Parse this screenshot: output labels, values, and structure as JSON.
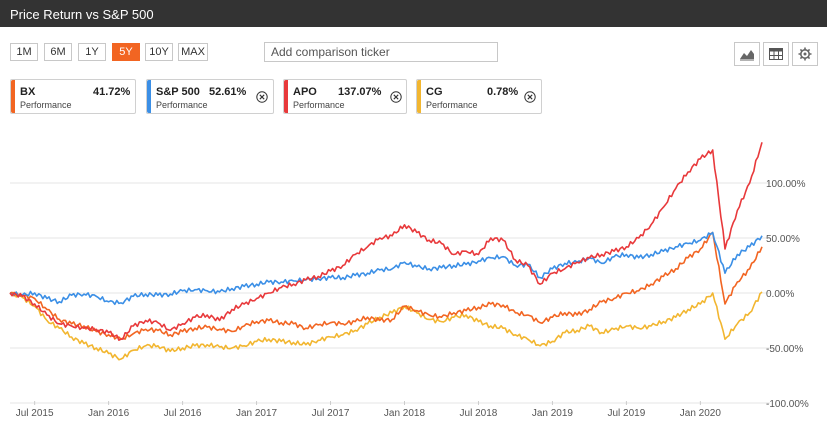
{
  "header": {
    "title": "Price Return vs S&P 500"
  },
  "ranges": [
    {
      "label": "1M",
      "active": false
    },
    {
      "label": "6M",
      "active": false
    },
    {
      "label": "1Y",
      "active": false
    },
    {
      "label": "5Y",
      "active": true
    },
    {
      "label": "10Y",
      "active": false
    },
    {
      "label": "MAX",
      "active": false
    }
  ],
  "comparison": {
    "placeholder": "Add comparison ticker"
  },
  "toolbar": {
    "icons": [
      "area-chart-icon",
      "table-icon",
      "gear-icon"
    ]
  },
  "cards": [
    {
      "symbol": "BX",
      "value": "41.72%",
      "sub": "Performance",
      "color": "#f26522",
      "removable": false
    },
    {
      "symbol": "S&P 500",
      "value": "52.61%",
      "sub": "Performance",
      "color": "#3b8fe6",
      "removable": true
    },
    {
      "symbol": "APO",
      "value": "137.07%",
      "sub": "Performance",
      "color": "#e8393b",
      "removable": true
    },
    {
      "symbol": "CG",
      "value": "0.78%",
      "sub": "Performance",
      "color": "#f2b630",
      "removable": true
    }
  ],
  "chart_data": {
    "type": "line",
    "x_ticks": [
      "Jul 2015",
      "Jan 2016",
      "Jul 2016",
      "Jan 2017",
      "Jul 2017",
      "Jan 2018",
      "Jul 2018",
      "Jan 2019",
      "Jul 2019",
      "Jan 2020"
    ],
    "y_ticks": [
      "100.00%",
      "50.00%",
      "0.00%",
      "-50.00%",
      "-100.00%"
    ],
    "ylim": [
      -100,
      150
    ],
    "xlim": [
      "2015-05",
      "2020-06"
    ],
    "grid": "horizontal",
    "series": [
      {
        "name": "BX",
        "color": "#f26522",
        "points": [
          [
            "2015-05",
            0
          ],
          [
            "2015-06",
            -2
          ],
          [
            "2015-07",
            -5
          ],
          [
            "2015-08",
            -15
          ],
          [
            "2015-09",
            -24
          ],
          [
            "2015-10",
            -28
          ],
          [
            "2015-11",
            -30
          ],
          [
            "2015-12",
            -35
          ],
          [
            "2016-01",
            -38
          ],
          [
            "2016-02",
            -42
          ],
          [
            "2016-03",
            -37
          ],
          [
            "2016-04",
            -33
          ],
          [
            "2016-05",
            -34
          ],
          [
            "2016-06",
            -38
          ],
          [
            "2016-07",
            -35
          ],
          [
            "2016-08",
            -32
          ],
          [
            "2016-09",
            -31
          ],
          [
            "2016-10",
            -33
          ],
          [
            "2016-11",
            -35
          ],
          [
            "2016-12",
            -30
          ],
          [
            "2017-01",
            -26
          ],
          [
            "2017-02",
            -25
          ],
          [
            "2017-03",
            -27
          ],
          [
            "2017-04",
            -28
          ],
          [
            "2017-05",
            -32
          ],
          [
            "2017-06",
            -29
          ],
          [
            "2017-07",
            -27
          ],
          [
            "2017-08",
            -28
          ],
          [
            "2017-09",
            -26
          ],
          [
            "2017-10",
            -22
          ],
          [
            "2017-11",
            -25
          ],
          [
            "2017-12",
            -24
          ],
          [
            "2018-01",
            -12
          ],
          [
            "2018-02",
            -16
          ],
          [
            "2018-03",
            -20
          ],
          [
            "2018-04",
            -22
          ],
          [
            "2018-05",
            -18
          ],
          [
            "2018-06",
            -16
          ],
          [
            "2018-07",
            -13
          ],
          [
            "2018-08",
            -10
          ],
          [
            "2018-09",
            -11
          ],
          [
            "2018-10",
            -18
          ],
          [
            "2018-11",
            -20
          ],
          [
            "2018-12",
            -27
          ],
          [
            "2019-01",
            -22
          ],
          [
            "2019-02",
            -18
          ],
          [
            "2019-03",
            -20
          ],
          [
            "2019-04",
            -15
          ],
          [
            "2019-05",
            -8
          ],
          [
            "2019-06",
            -5
          ],
          [
            "2019-07",
            0
          ],
          [
            "2019-08",
            2
          ],
          [
            "2019-09",
            8
          ],
          [
            "2019-10",
            15
          ],
          [
            "2019-11",
            22
          ],
          [
            "2019-12",
            32
          ],
          [
            "2020-01",
            40
          ],
          [
            "2020-02",
            55
          ],
          [
            "2020-03",
            -10
          ],
          [
            "2020-04",
            10
          ],
          [
            "2020-05",
            22
          ],
          [
            "2020-06",
            42
          ]
        ]
      },
      {
        "name": "S&P 500",
        "color": "#3b8fe6",
        "points": [
          [
            "2015-05",
            0
          ],
          [
            "2015-06",
            -2
          ],
          [
            "2015-07",
            0
          ],
          [
            "2015-08",
            -5
          ],
          [
            "2015-09",
            -8
          ],
          [
            "2015-10",
            -2
          ],
          [
            "2015-11",
            -1
          ],
          [
            "2015-12",
            -3
          ],
          [
            "2016-01",
            -8
          ],
          [
            "2016-02",
            -9
          ],
          [
            "2016-03",
            -3
          ],
          [
            "2016-04",
            -1
          ],
          [
            "2016-05",
            -2
          ],
          [
            "2016-06",
            -1
          ],
          [
            "2016-07",
            2
          ],
          [
            "2016-08",
            3
          ],
          [
            "2016-09",
            2
          ],
          [
            "2016-10",
            1
          ],
          [
            "2016-11",
            4
          ],
          [
            "2016-12",
            6
          ],
          [
            "2017-01",
            8
          ],
          [
            "2017-02",
            10
          ],
          [
            "2017-03",
            10
          ],
          [
            "2017-04",
            11
          ],
          [
            "2017-05",
            12
          ],
          [
            "2017-06",
            13
          ],
          [
            "2017-07",
            14
          ],
          [
            "2017-08",
            14
          ],
          [
            "2017-09",
            16
          ],
          [
            "2017-10",
            18
          ],
          [
            "2017-11",
            21
          ],
          [
            "2017-12",
            22
          ],
          [
            "2018-01",
            28
          ],
          [
            "2018-02",
            24
          ],
          [
            "2018-03",
            22
          ],
          [
            "2018-04",
            23
          ],
          [
            "2018-05",
            25
          ],
          [
            "2018-06",
            26
          ],
          [
            "2018-07",
            29
          ],
          [
            "2018-08",
            32
          ],
          [
            "2018-09",
            33
          ],
          [
            "2018-10",
            25
          ],
          [
            "2018-11",
            26
          ],
          [
            "2018-12",
            14
          ],
          [
            "2019-01",
            22
          ],
          [
            "2019-02",
            27
          ],
          [
            "2019-03",
            28
          ],
          [
            "2019-04",
            32
          ],
          [
            "2019-05",
            27
          ],
          [
            "2019-06",
            33
          ],
          [
            "2019-07",
            35
          ],
          [
            "2019-08",
            32
          ],
          [
            "2019-09",
            35
          ],
          [
            "2019-10",
            38
          ],
          [
            "2019-11",
            42
          ],
          [
            "2019-12",
            45
          ],
          [
            "2020-01",
            48
          ],
          [
            "2020-02",
            55
          ],
          [
            "2020-03",
            18
          ],
          [
            "2020-04",
            35
          ],
          [
            "2020-05",
            42
          ],
          [
            "2020-06",
            52
          ]
        ]
      },
      {
        "name": "APO",
        "color": "#e8393b",
        "points": [
          [
            "2015-05",
            0
          ],
          [
            "2015-06",
            -3
          ],
          [
            "2015-07",
            -10
          ],
          [
            "2015-08",
            -20
          ],
          [
            "2015-09",
            -28
          ],
          [
            "2015-10",
            -30
          ],
          [
            "2015-11",
            -32
          ],
          [
            "2015-12",
            -33
          ],
          [
            "2016-01",
            -36
          ],
          [
            "2016-02",
            -42
          ],
          [
            "2016-03",
            -30
          ],
          [
            "2016-04",
            -25
          ],
          [
            "2016-05",
            -27
          ],
          [
            "2016-06",
            -34
          ],
          [
            "2016-07",
            -28
          ],
          [
            "2016-08",
            -22
          ],
          [
            "2016-09",
            -20
          ],
          [
            "2016-10",
            -25
          ],
          [
            "2016-11",
            -15
          ],
          [
            "2016-12",
            -10
          ],
          [
            "2017-01",
            -5
          ],
          [
            "2017-02",
            0
          ],
          [
            "2017-03",
            5
          ],
          [
            "2017-04",
            8
          ],
          [
            "2017-05",
            12
          ],
          [
            "2017-06",
            15
          ],
          [
            "2017-07",
            20
          ],
          [
            "2017-08",
            25
          ],
          [
            "2017-09",
            35
          ],
          [
            "2017-10",
            42
          ],
          [
            "2017-11",
            50
          ],
          [
            "2017-12",
            52
          ],
          [
            "2018-01",
            62
          ],
          [
            "2018-02",
            55
          ],
          [
            "2018-03",
            48
          ],
          [
            "2018-04",
            45
          ],
          [
            "2018-05",
            35
          ],
          [
            "2018-06",
            38
          ],
          [
            "2018-07",
            35
          ],
          [
            "2018-08",
            50
          ],
          [
            "2018-09",
            48
          ],
          [
            "2018-10",
            30
          ],
          [
            "2018-11",
            25
          ],
          [
            "2018-12",
            8
          ],
          [
            "2019-01",
            18
          ],
          [
            "2019-02",
            22
          ],
          [
            "2019-03",
            28
          ],
          [
            "2019-04",
            32
          ],
          [
            "2019-05",
            35
          ],
          [
            "2019-06",
            38
          ],
          [
            "2019-07",
            42
          ],
          [
            "2019-08",
            50
          ],
          [
            "2019-09",
            62
          ],
          [
            "2019-10",
            78
          ],
          [
            "2019-11",
            95
          ],
          [
            "2019-12",
            110
          ],
          [
            "2020-01",
            122
          ],
          [
            "2020-02",
            130
          ],
          [
            "2020-03",
            40
          ],
          [
            "2020-04",
            75
          ],
          [
            "2020-05",
            100
          ],
          [
            "2020-06",
            137
          ]
        ]
      },
      {
        "name": "CG",
        "color": "#f2b630",
        "points": [
          [
            "2015-05",
            0
          ],
          [
            "2015-06",
            -4
          ],
          [
            "2015-07",
            -12
          ],
          [
            "2015-08",
            -25
          ],
          [
            "2015-09",
            -32
          ],
          [
            "2015-10",
            -40
          ],
          [
            "2015-11",
            -46
          ],
          [
            "2015-12",
            -50
          ],
          [
            "2016-01",
            -55
          ],
          [
            "2016-02",
            -60
          ],
          [
            "2016-03",
            -52
          ],
          [
            "2016-04",
            -48
          ],
          [
            "2016-05",
            -48
          ],
          [
            "2016-06",
            -53
          ],
          [
            "2016-07",
            -50
          ],
          [
            "2016-08",
            -48
          ],
          [
            "2016-09",
            -47
          ],
          [
            "2016-10",
            -49
          ],
          [
            "2016-11",
            -50
          ],
          [
            "2016-12",
            -48
          ],
          [
            "2017-01",
            -44
          ],
          [
            "2017-02",
            -42
          ],
          [
            "2017-03",
            -44
          ],
          [
            "2017-04",
            -45
          ],
          [
            "2017-05",
            -47
          ],
          [
            "2017-06",
            -43
          ],
          [
            "2017-07",
            -40
          ],
          [
            "2017-08",
            -38
          ],
          [
            "2017-09",
            -34
          ],
          [
            "2017-10",
            -28
          ],
          [
            "2017-11",
            -22
          ],
          [
            "2017-12",
            -18
          ],
          [
            "2018-01",
            -12
          ],
          [
            "2018-02",
            -18
          ],
          [
            "2018-03",
            -24
          ],
          [
            "2018-04",
            -26
          ],
          [
            "2018-05",
            -22
          ],
          [
            "2018-06",
            -20
          ],
          [
            "2018-07",
            -26
          ],
          [
            "2018-08",
            -30
          ],
          [
            "2018-09",
            -32
          ],
          [
            "2018-10",
            -38
          ],
          [
            "2018-11",
            -42
          ],
          [
            "2018-12",
            -48
          ],
          [
            "2019-01",
            -44
          ],
          [
            "2019-02",
            -36
          ],
          [
            "2019-03",
            -34
          ],
          [
            "2019-04",
            -30
          ],
          [
            "2019-05",
            -36
          ],
          [
            "2019-06",
            -33
          ],
          [
            "2019-07",
            -30
          ],
          [
            "2019-08",
            -32
          ],
          [
            "2019-09",
            -30
          ],
          [
            "2019-10",
            -26
          ],
          [
            "2019-11",
            -22
          ],
          [
            "2019-12",
            -15
          ],
          [
            "2020-01",
            -10
          ],
          [
            "2020-02",
            0
          ],
          [
            "2020-03",
            -42
          ],
          [
            "2020-04",
            -28
          ],
          [
            "2020-05",
            -18
          ],
          [
            "2020-06",
            1
          ]
        ]
      }
    ]
  }
}
